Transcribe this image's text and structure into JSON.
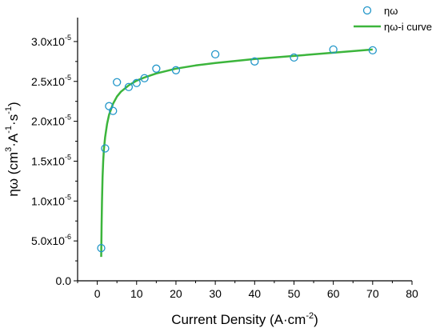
{
  "chart_data": {
    "type": "scatter",
    "xlabel": "Current Density (A·cm⁻²)",
    "ylabel": "ηω (cm³·A⁻¹·s⁻¹)",
    "xlim": [
      -5,
      80
    ],
    "ylim": [
      0,
      3.3e-05
    ],
    "x_ticks": [
      0,
      10,
      20,
      30,
      40,
      50,
      60,
      70,
      80
    ],
    "x_tick_labels": [
      "0",
      "10",
      "20",
      "30",
      "40",
      "50",
      "60",
      "70",
      "80"
    ],
    "y_ticks": [
      0,
      5e-06,
      1e-05,
      1.5e-05,
      2e-05,
      2.5e-05,
      3e-05
    ],
    "y_tick_labels": [
      {
        "mantissa": "0.0",
        "exp": ""
      },
      {
        "mantissa": "5.0x10",
        "exp": "-6"
      },
      {
        "mantissa": "1.0x10",
        "exp": "-5"
      },
      {
        "mantissa": "1.5x10",
        "exp": "-5"
      },
      {
        "mantissa": "2.0x10",
        "exp": "-5"
      },
      {
        "mantissa": "2.5x10",
        "exp": "-5"
      },
      {
        "mantissa": "3.0x10",
        "exp": "-5"
      }
    ],
    "legend_position": "top-right",
    "grid": false,
    "series": [
      {
        "name": "ηω",
        "kind": "scatter",
        "marker": "open-circle",
        "color": "#2196c9",
        "x": [
          1,
          2,
          3,
          4,
          5,
          8,
          10,
          12,
          15,
          20,
          30,
          40,
          50,
          60,
          70
        ],
        "y": [
          4.1e-06,
          1.66e-05,
          2.19e-05,
          2.13e-05,
          2.49e-05,
          2.43e-05,
          2.48e-05,
          2.54e-05,
          2.66e-05,
          2.64e-05,
          2.84e-05,
          2.75e-05,
          2.8e-05,
          2.9e-05,
          2.89e-05
        ]
      },
      {
        "name": "ηω-i curve",
        "kind": "line",
        "color": "#3cb53c",
        "x": [
          1,
          1.1,
          1.2,
          1.35,
          1.5,
          1.7,
          2,
          2.5,
          3,
          4,
          5,
          6,
          8,
          10,
          12,
          15,
          20,
          25,
          30,
          40,
          50,
          60,
          70
        ],
        "y": [
          3e-06,
          7e-06,
          1e-05,
          1.3e-05,
          1.5e-05,
          1.65e-05,
          1.8e-05,
          1.97e-05,
          2.08e-05,
          2.22e-05,
          2.31e-05,
          2.37e-05,
          2.45e-05,
          2.51e-05,
          2.55e-05,
          2.6e-05,
          2.66e-05,
          2.7e-05,
          2.73e-05,
          2.78e-05,
          2.82e-05,
          2.86e-05,
          2.9e-05
        ]
      }
    ]
  }
}
